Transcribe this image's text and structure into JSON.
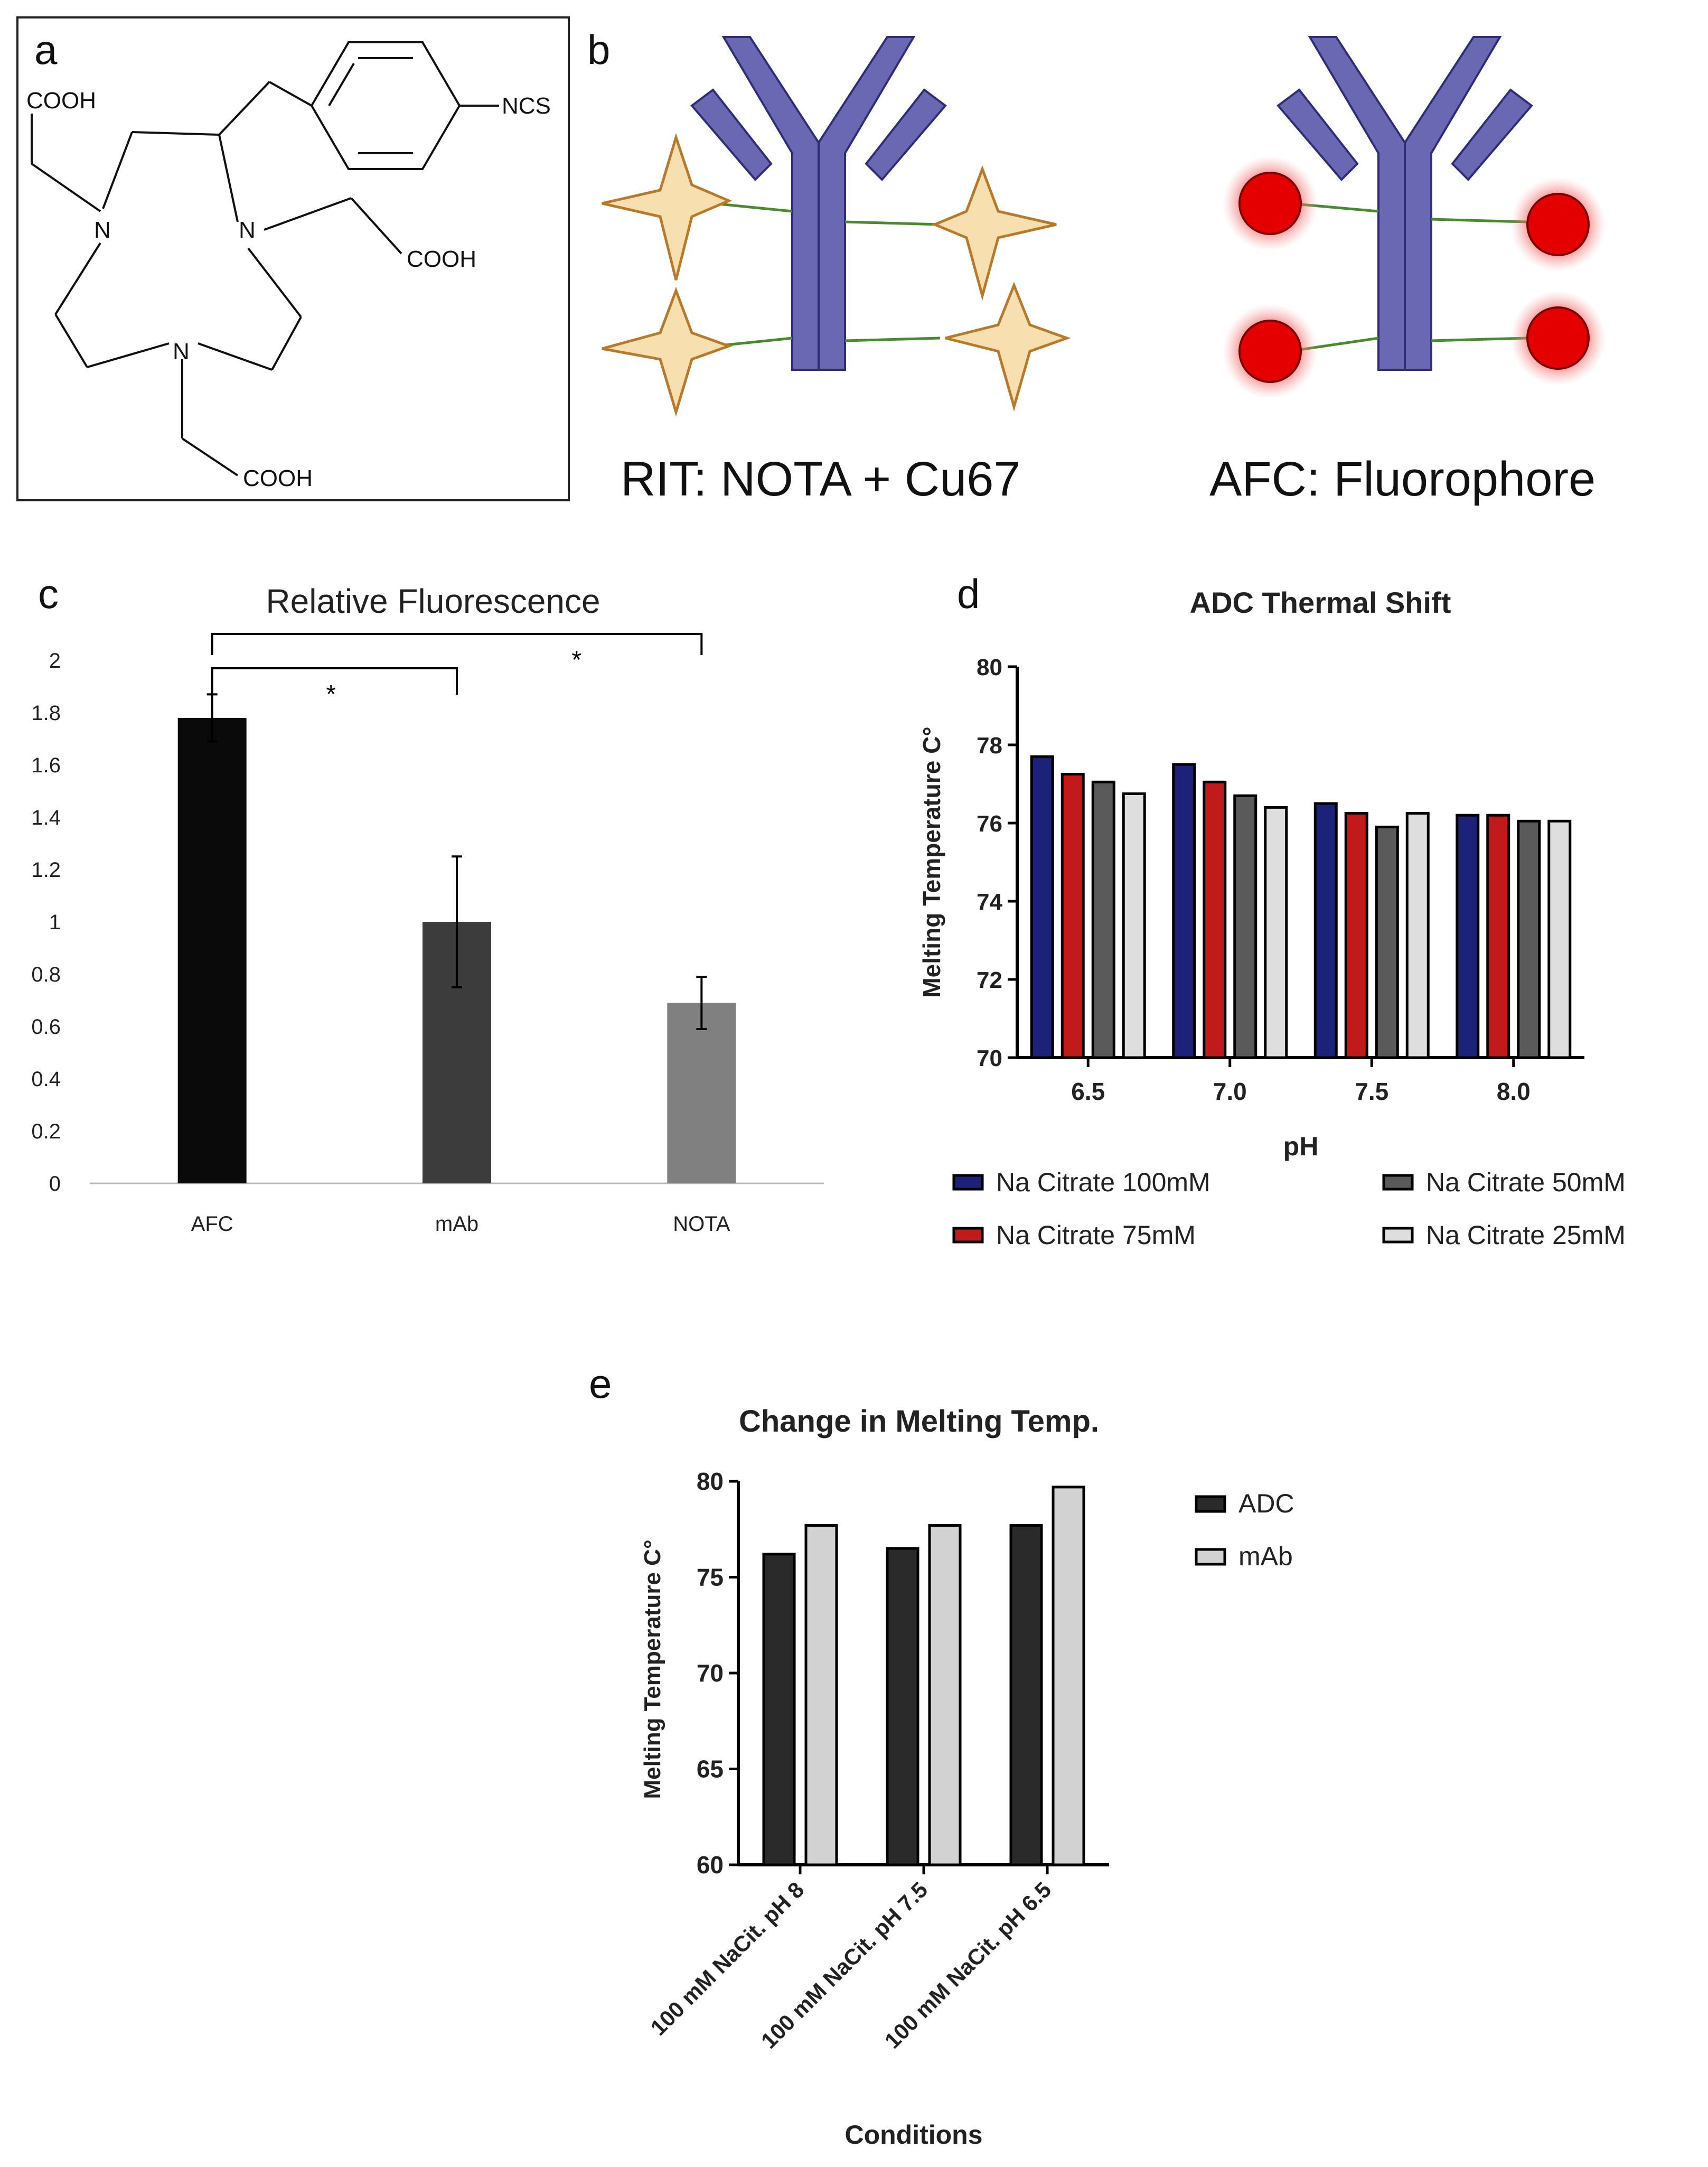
{
  "panels": {
    "a": {
      "letter": "a",
      "chem": {
        "cooh_1": "COOH",
        "ncs": "NCS",
        "n_1": "N",
        "n_2": "N",
        "cooh_2": "COOH",
        "n_3": "N",
        "cooh_3": "COOH"
      }
    },
    "b": {
      "letter": "b",
      "rit_label": "RIT: NOTA + Cu67",
      "afc_label": "AFC: Fluorophore"
    },
    "c": {
      "letter": "c"
    },
    "d": {
      "letter": "d"
    },
    "e": {
      "letter": "e"
    }
  },
  "colors": {
    "antibody": "#6a67b3",
    "antibody_stroke": "#2f2c7a",
    "star_fill": "#f7dfb0",
    "star_stroke": "#b8792a",
    "linker": "#4a8a2e",
    "fluor": "#e40000",
    "fluor_glow": "#f5a0a0",
    "c_afc": "#0a0a0a",
    "c_mab": "#3c3c3c",
    "c_nota": "#808080",
    "d_100": "#1c2277",
    "d_75": "#c01a1a",
    "d_50": "#5a5a5a",
    "d_25": "#dedede",
    "e_adc": "#2a2a2a",
    "e_mab": "#d2d2d2"
  },
  "chart_data": [
    {
      "id": "c",
      "type": "bar",
      "title": "Relative Fluorescence",
      "categories": [
        "AFC",
        "mAb",
        "NOTA"
      ],
      "values": [
        1.78,
        1.0,
        0.69
      ],
      "errors": [
        0.09,
        0.25,
        0.1
      ],
      "ylim": [
        0,
        2
      ],
      "yticks": [
        "0",
        "0.2",
        "0.4",
        "0.6",
        "0.8",
        "1",
        "1.2",
        "1.4",
        "1.6",
        "1.8",
        "2"
      ],
      "significance": [
        {
          "from": "AFC",
          "to": "mAb",
          "label": "*"
        },
        {
          "from": "AFC",
          "to": "NOTA",
          "label": "*"
        }
      ],
      "xlabel": "",
      "ylabel": ""
    },
    {
      "id": "d",
      "type": "bar",
      "title": "ADC Thermal  Shift",
      "xlabel": "pH",
      "ylabel": "Melting Temperature C°",
      "categories": [
        "6.5",
        "7.0",
        "7.5",
        "8.0"
      ],
      "ylim": [
        70,
        80
      ],
      "yticks": [
        "70",
        "72",
        "74",
        "76",
        "78",
        "80"
      ],
      "series": [
        {
          "name": "Na Citrate 100mM",
          "values": [
            77.7,
            77.5,
            76.5,
            76.2
          ]
        },
        {
          "name": "Na Citrate 75mM",
          "values": [
            77.25,
            77.05,
            76.25,
            76.2
          ]
        },
        {
          "name": "Na Citrate 50mM",
          "values": [
            77.05,
            76.7,
            75.9,
            76.05
          ]
        },
        {
          "name": "Na Citrate 25mM",
          "values": [
            76.75,
            76.4,
            76.25,
            76.05
          ]
        }
      ],
      "legend": "bottom"
    },
    {
      "id": "e",
      "type": "bar",
      "title": "Change in Melting Temp.",
      "xlabel": "Conditions",
      "ylabel": "Melting Temperature C°",
      "categories": [
        "100 mM NaCit. pH 8",
        "100 mM NaCit. pH 7.5",
        "100 mM NaCit. pH 6.5"
      ],
      "ylim": [
        60,
        80
      ],
      "yticks": [
        "60",
        "65",
        "70",
        "75",
        "80"
      ],
      "series": [
        {
          "name": "ADC",
          "values": [
            76.2,
            76.5,
            77.7
          ]
        },
        {
          "name": "mAb",
          "values": [
            77.7,
            77.7,
            79.7
          ]
        }
      ],
      "legend": "right"
    }
  ]
}
